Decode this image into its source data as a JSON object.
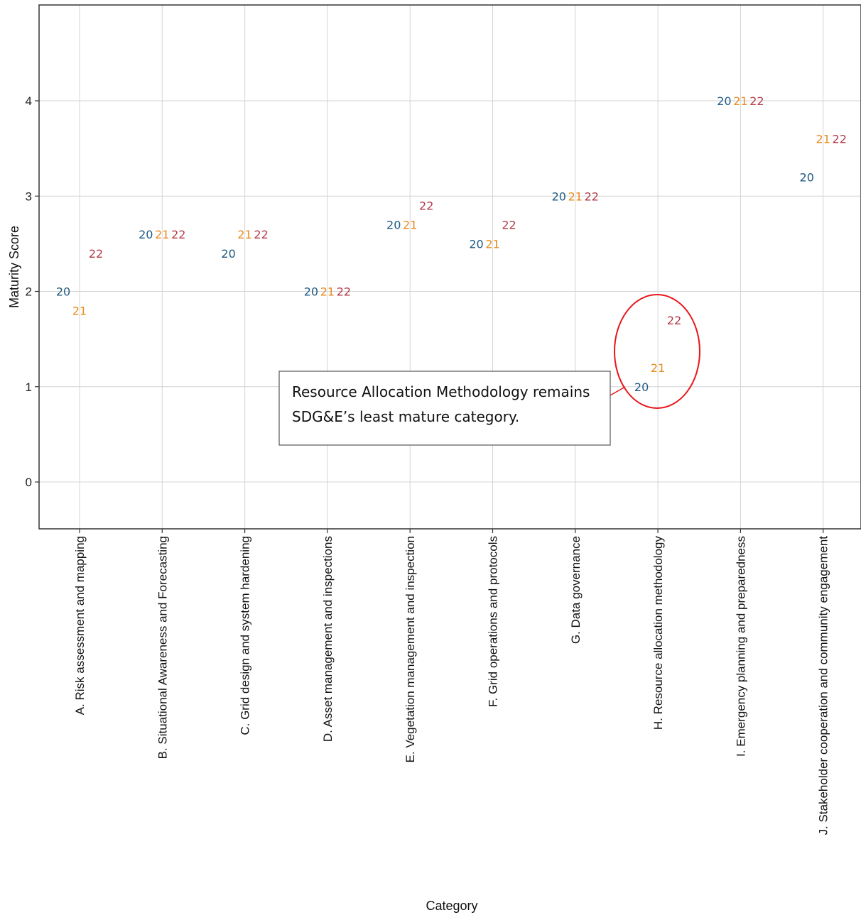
{
  "chart_data": {
    "type": "scatter",
    "xlabel": "Category",
    "ylabel": "Maturity Score",
    "ylim": [
      -0.5,
      5.0
    ],
    "yticks": [
      0,
      1,
      2,
      3,
      4
    ],
    "grid": true,
    "categories": [
      "A. Risk assessment and mapping",
      "B. Situational Awareness and Forecasting",
      "C. Grid design and system hardening",
      "D. Asset management and inspections",
      "E. Vegetation management and inspection",
      "F. Grid operations and protocols",
      "G. Data governance",
      "H. Resource allocation methodology",
      "I. Emergency planning and preparedness",
      "J. Stakeholder cooperation and community engagement"
    ],
    "series": [
      {
        "name": "20",
        "color": "#1f5a84",
        "values": [
          2.0,
          2.6,
          2.4,
          2.0,
          2.7,
          2.5,
          3.0,
          1.0,
          4.0,
          3.2
        ]
      },
      {
        "name": "21",
        "color": "#e88b1e",
        "values": [
          1.8,
          2.6,
          2.6,
          2.0,
          2.7,
          2.5,
          3.0,
          1.2,
          4.0,
          3.6
        ]
      },
      {
        "name": "22",
        "color": "#b23a48",
        "values": [
          2.4,
          2.6,
          2.6,
          2.0,
          2.9,
          2.7,
          3.0,
          1.7,
          4.0,
          3.6
        ]
      }
    ],
    "annotations": [
      {
        "text_line1": "Resource Allocation Methodology remains",
        "text_line2": "SDG&E’s least mature category.",
        "category_index": 7
      }
    ]
  },
  "colors": {
    "highlight": "#e8161a",
    "grid": "#d4d4d4",
    "axis": "#333333"
  }
}
